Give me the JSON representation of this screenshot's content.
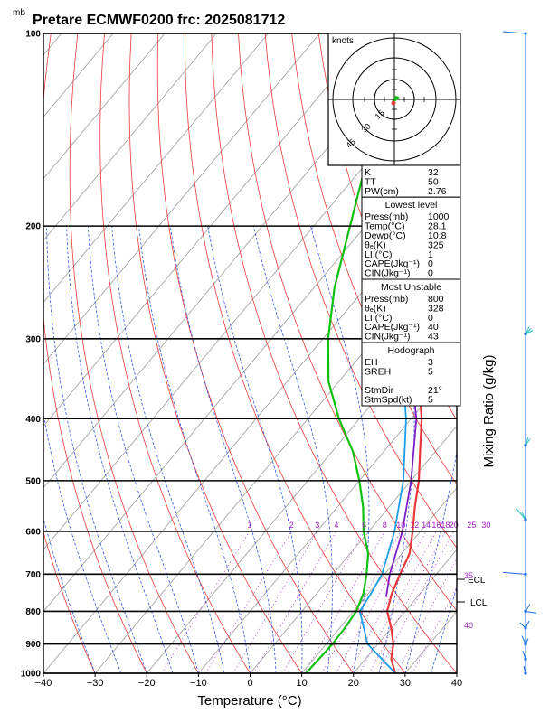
{
  "header": {
    "unit_mb": "mb",
    "title": "Pretare ECMWF0200 frc: 2025081712"
  },
  "chart_data": {
    "type": "line",
    "title": "Pretare ECMWF0200 frc: 2025081712",
    "xlabel": "Temperature (°C)",
    "ylabel_right": "Mixing Ratio (g/kg)",
    "xlim": [
      -40,
      40
    ],
    "ylim_hpa": [
      1000,
      100
    ],
    "x_ticks": [
      "−40",
      "−30",
      "−20",
      "−10",
      "0",
      "10",
      "20",
      "30",
      "40"
    ],
    "p_ticks": [
      "100",
      "200",
      "300",
      "400",
      "500",
      "600",
      "700",
      "800",
      "900",
      "1000"
    ],
    "mixing_ratio_labels": [
      "1",
      "2",
      "3",
      "4",
      "6",
      "8",
      "10",
      "12",
      "14",
      "16",
      "18",
      "20",
      "25",
      "30"
    ],
    "mixing_ratio_values": [
      1,
      2,
      3,
      4,
      6,
      8,
      10,
      12,
      14,
      16,
      18,
      20,
      25,
      30
    ],
    "theta_e_labels": [
      "35",
      "40"
    ],
    "series": [
      {
        "name": "Temperature",
        "color": "#e8383a",
        "points": [
          [
            1000,
            28.1
          ],
          [
            950,
            25
          ],
          [
            900,
            23
          ],
          [
            850,
            20
          ],
          [
            800,
            16.5
          ],
          [
            750,
            14.5
          ],
          [
            700,
            13
          ],
          [
            650,
            11.5
          ],
          [
            600,
            8.5
          ],
          [
            550,
            5
          ],
          [
            500,
            1.5
          ],
          [
            450,
            -3
          ],
          [
            400,
            -8
          ],
          [
            350,
            -14.5
          ],
          [
            300,
            -22
          ],
          [
            270,
            -27
          ],
          [
            250,
            -30
          ],
          [
            220,
            -24
          ],
          [
            200,
            -20
          ],
          [
            150,
            -7
          ],
          [
            120,
            2
          ],
          [
            100,
            8
          ]
        ]
      },
      {
        "name": "Dewpoint",
        "color": "#10c010",
        "points": [
          [
            1000,
            10.8
          ],
          [
            950,
            11
          ],
          [
            900,
            11.2
          ],
          [
            850,
            11
          ],
          [
            800,
            10.5
          ],
          [
            750,
            9
          ],
          [
            700,
            6.5
          ],
          [
            650,
            3.5
          ],
          [
            600,
            -1
          ],
          [
            550,
            -5
          ],
          [
            500,
            -10
          ],
          [
            450,
            -16
          ],
          [
            400,
            -24
          ],
          [
            350,
            -32
          ],
          [
            300,
            -39
          ],
          [
            250,
            -46
          ],
          [
            200,
            -53
          ],
          [
            150,
            -62
          ],
          [
            120,
            -67
          ],
          [
            100,
            -72
          ]
        ]
      },
      {
        "name": "Parcel",
        "color": "#1a9ee8",
        "points": [
          [
            1000,
            28.1
          ],
          [
            900,
            18
          ],
          [
            800,
            11.2
          ],
          [
            750,
            10.5
          ],
          [
            700,
            9.5
          ],
          [
            600,
            5
          ],
          [
            500,
            -1.5
          ],
          [
            400,
            -11
          ],
          [
            300,
            -25
          ],
          [
            250,
            -35
          ],
          [
            200,
            -46
          ],
          [
            150,
            -60
          ],
          [
            120,
            -69
          ],
          [
            107,
            -74
          ]
        ]
      },
      {
        "name": "Virtual",
        "color": "#7a1ec8",
        "points": [
          [
            760,
            14
          ],
          [
            700,
            11
          ],
          [
            600,
            6.5
          ],
          [
            500,
            0
          ],
          [
            400,
            -9
          ],
          [
            300,
            -23.5
          ],
          [
            250,
            -33
          ],
          [
            200,
            -44
          ],
          [
            150,
            -57
          ],
          [
            120,
            -66
          ],
          [
            103,
            -72
          ]
        ]
      }
    ],
    "levels": {
      "ecl_hpa": 700,
      "lcl_hpa": 775
    },
    "level_labels": {
      "ecl": "ECL",
      "lcl": "LCL"
    }
  },
  "hodograph": {
    "unit": "knots",
    "rings": [
      "15",
      "30",
      "45"
    ]
  },
  "indices": {
    "rows": [
      {
        "k": "K",
        "v": "32"
      },
      {
        "k": "TT",
        "v": "50"
      },
      {
        "k": "PW(cm)",
        "v": "2.76"
      }
    ]
  },
  "lowest": {
    "title": "Lowest level",
    "rows": [
      {
        "k": "Press(mb)",
        "v": "1000"
      },
      {
        "k": "Temp(°C)",
        "v": "28.1"
      },
      {
        "k": "Dewp(°C)",
        "v": "10.8"
      },
      {
        "k": "θₑ(K)",
        "v": "325"
      },
      {
        "k": "LI (°C)",
        "v": "1"
      },
      {
        "k": "CAPE(Jkg⁻¹)",
        "v": "0"
      },
      {
        "k": "CIN(Jkg⁻¹)",
        "v": "0"
      }
    ]
  },
  "most_unstable": {
    "title": "Most Unstable",
    "rows": [
      {
        "k": "Press(mb)",
        "v": "800"
      },
      {
        "k": "θₑ(K)",
        "v": "328"
      },
      {
        "k": "LI (°C)",
        "v": "0"
      },
      {
        "k": "CAPE(Jkg⁻¹)",
        "v": "40"
      },
      {
        "k": "CIN(Jkg⁻¹)",
        "v": "43"
      }
    ]
  },
  "hodo_params": {
    "title": "Hodograph",
    "rows": [
      {
        "k": "EH",
        "v": "3"
      },
      {
        "k": "SREH",
        "v": "5"
      },
      {
        "k": "",
        "v": ""
      },
      {
        "k": "StmDir",
        "v": "21°"
      },
      {
        "k": "StmSpd(kt)",
        "v": "5"
      }
    ]
  },
  "wind_profile": {
    "levels_hpa": [
      100,
      295,
      440,
      575,
      700,
      800,
      850,
      900,
      950,
      1000
    ]
  }
}
